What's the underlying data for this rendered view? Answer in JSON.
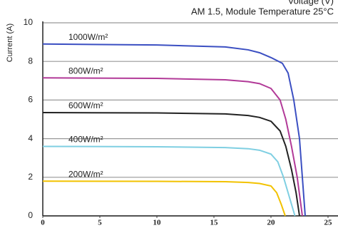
{
  "chart_data": {
    "type": "line",
    "xlabel": "Voltage (V)",
    "subtitle": "AM 1.5, Module Temperature 25°C",
    "ylabel": "Current (A)",
    "xlim": [
      0,
      25
    ],
    "xticks": [
      0,
      5,
      10,
      15,
      20,
      25
    ],
    "ylim": [
      0,
      10
    ],
    "yticks": [
      0,
      2,
      4,
      6,
      8,
      10
    ],
    "grid": true,
    "series": [
      {
        "name": "1000W/m²",
        "color": "#3b4fc2",
        "x": [
          0,
          10,
          16,
          18,
          19,
          20,
          21,
          21.5,
          22,
          22.5,
          22.75,
          23
        ],
        "values": [
          8.9,
          8.85,
          8.75,
          8.6,
          8.45,
          8.2,
          7.9,
          7.4,
          6.0,
          4.0,
          2.0,
          0
        ]
      },
      {
        "name": "800W/m²",
        "color": "#b23a98",
        "x": [
          0,
          10,
          16,
          18,
          19,
          20,
          20.8,
          21.3,
          21.8,
          22.3,
          22.75
        ],
        "values": [
          7.15,
          7.12,
          7.05,
          6.95,
          6.85,
          6.6,
          6.0,
          5.0,
          3.6,
          2.0,
          0
        ]
      },
      {
        "name": "600W/m²",
        "color": "#222222",
        "x": [
          0,
          10,
          16,
          18,
          19,
          20,
          20.8,
          21.3,
          21.8,
          22.2,
          22.5
        ],
        "values": [
          5.35,
          5.33,
          5.28,
          5.2,
          5.1,
          4.9,
          4.4,
          3.6,
          2.4,
          1.2,
          0
        ]
      },
      {
        "name": "400W/m²",
        "color": "#7fcfe2",
        "x": [
          0,
          10,
          16,
          18,
          19,
          20,
          20.6,
          21.1,
          21.6,
          22.1
        ],
        "values": [
          3.6,
          3.58,
          3.54,
          3.48,
          3.4,
          3.2,
          2.8,
          2.0,
          1.0,
          0
        ]
      },
      {
        "name": "200W/m²",
        "color": "#f2c200",
        "x": [
          0,
          10,
          16,
          18,
          19,
          20,
          20.5,
          20.9,
          21.25
        ],
        "values": [
          1.8,
          1.79,
          1.77,
          1.73,
          1.68,
          1.55,
          1.2,
          0.6,
          0
        ]
      }
    ]
  }
}
